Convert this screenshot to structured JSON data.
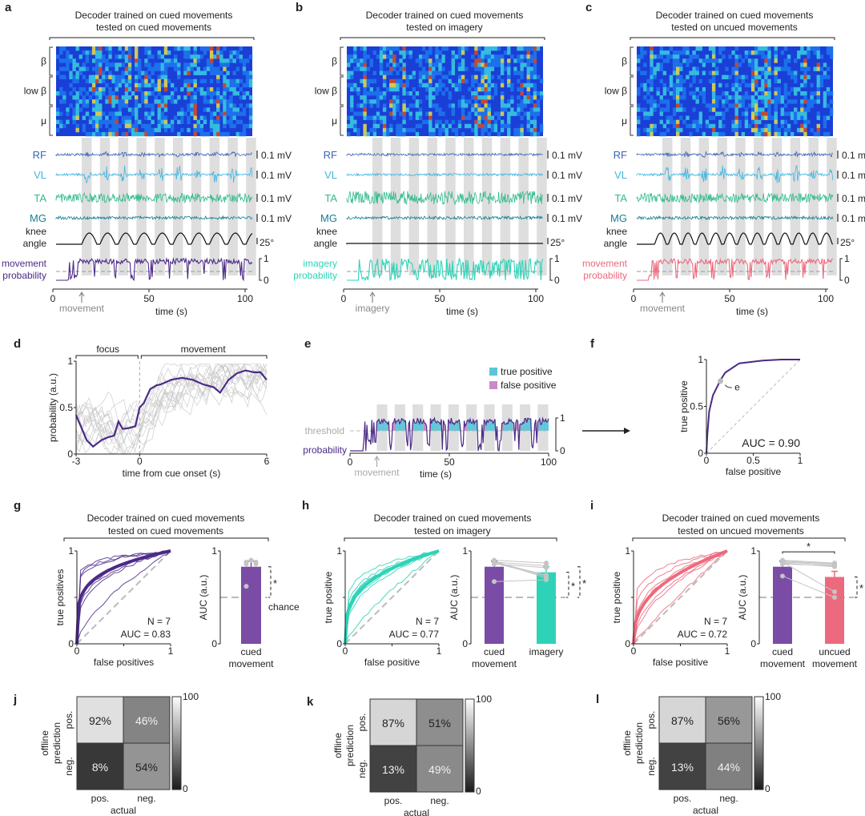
{
  "colors": {
    "purple": "#4b2a87",
    "purple_bar": "#7a4ca5",
    "teal": "#2ed3b7",
    "pink": "#ec6a7e",
    "rf": "#3b63b3",
    "vl": "#3fb6e4",
    "ta": "#2fba8c",
    "mg": "#167f93",
    "gray_band": "#dedede",
    "chance": "#bbbbbb",
    "tp": "#5cc6d8",
    "fp": "#c98ac8"
  },
  "panels": {
    "a": {
      "letter": "a",
      "title1": "Decoder trained on cued movements",
      "title2": "tested on cued movements",
      "prob_label1": "movement",
      "prob_label2": "probability",
      "prob_color": "purple",
      "event": "movement",
      "active": true
    },
    "b": {
      "letter": "b",
      "title1": "Decoder trained on cued movements",
      "title2": "tested on imagery",
      "prob_label1": "imagery",
      "prob_label2": "probability",
      "prob_color": "teal",
      "event": "imagery",
      "active": false
    },
    "c": {
      "letter": "c",
      "title1": "Decoder trained on cued movements",
      "title2": "tested on uncued movements",
      "prob_label1": "movement",
      "prob_label2": "probability",
      "prob_color": "pink",
      "event": "movement",
      "active": true
    }
  },
  "spectro_labels": [
    "β",
    "low β",
    "μ"
  ],
  "emg_channels": [
    {
      "name": "RF",
      "scale": "0.1 mV",
      "color": "rf"
    },
    {
      "name": "VL",
      "scale": "0.1 mV",
      "color": "vl"
    },
    {
      "name": "TA",
      "scale": "0.1 mV",
      "color": "ta"
    },
    {
      "name": "MG",
      "scale": "0.1 mV",
      "color": "mg"
    }
  ],
  "knee": {
    "label1": "knee",
    "label2": "angle",
    "scale": "25°"
  },
  "prob_scale": {
    "top": "1",
    "bottom": "0"
  },
  "time_axis": {
    "label": "time (s)",
    "ticks": [
      "0",
      "50",
      "100"
    ]
  },
  "panel_d": {
    "letter": "d",
    "focus_label": "focus",
    "movement_label": "movement",
    "ylabel": "probability (a.u.)",
    "xlabel": "time from cue onset (s)",
    "xticks": [
      "-3",
      "0",
      "6"
    ],
    "yticks": [
      "0",
      "0.5",
      "1"
    ]
  },
  "panel_e": {
    "letter": "e",
    "legend": [
      "true positive",
      "false positive"
    ],
    "threshold_label": "threshold",
    "prob_label": "probability",
    "event": "movement",
    "xlabel": "time (s)",
    "xticks": [
      "0",
      "50",
      "100"
    ]
  },
  "panel_f": {
    "letter": "f",
    "ylabel": "true positive",
    "xlabel": "false positive",
    "auc_text": "AUC = 0.90",
    "marker_label": "e",
    "xticks": [
      "0",
      "0.5",
      "1"
    ],
    "yticks": [
      "0",
      "0.5",
      "1"
    ]
  },
  "roc_panels": [
    {
      "letter": "g",
      "title1": "Decoder trained on cued movements",
      "title2": "tested on cued movements",
      "ylabel": "true positives",
      "xlabel": "false positives",
      "n_text": "N = 7",
      "auc_text": "AUC = 0.83",
      "color": "purple",
      "bars": [
        "cued movement"
      ],
      "chance_label": "chance"
    },
    {
      "letter": "h",
      "title1": "Decoder trained on cued movements",
      "title2": "tested on imagery",
      "ylabel": "true positive",
      "xlabel": "false positive",
      "n_text": "N = 7",
      "auc_text": "AUC = 0.77",
      "color": "teal",
      "bars": [
        "cued movement",
        "imagery"
      ]
    },
    {
      "letter": "i",
      "title1": "Decoder trained on cued movements",
      "title2": "tested on uncued movements",
      "ylabel": "true positive",
      "xlabel": "false positive",
      "n_text": "N = 7",
      "auc_text": "AUC = 0.72",
      "color": "pink",
      "bars": [
        "cued movement",
        "uncued movement"
      ]
    }
  ],
  "auc_axis": {
    "label": "AUC (a.u.)",
    "ticks": [
      "0",
      "1"
    ]
  },
  "confusion_panels": [
    {
      "letter": "j",
      "cells": [
        [
          "92%",
          "46%"
        ],
        [
          "8%",
          "54%"
        ]
      ],
      "values": [
        [
          92,
          46
        ],
        [
          8,
          54
        ]
      ]
    },
    {
      "letter": "k",
      "cells": [
        [
          "87%",
          "51%"
        ],
        [
          "13%",
          "49%"
        ]
      ],
      "values": [
        [
          87,
          51
        ],
        [
          13,
          49
        ]
      ]
    },
    {
      "letter": "l",
      "cells": [
        [
          "87%",
          "56%"
        ],
        [
          "13%",
          "44%"
        ]
      ],
      "values": [
        [
          87,
          56
        ],
        [
          13,
          44
        ]
      ]
    }
  ],
  "confusion_labels": {
    "ylabel1": "offline",
    "ylabel2": "prediction",
    "row": [
      "pos.",
      "neg."
    ],
    "col": [
      "pos.",
      "neg."
    ],
    "xlabel": "actual",
    "cbar_top": "100",
    "cbar_bottom": "0"
  },
  "chart_data": [
    {
      "type": "line",
      "panel": "d",
      "title": "",
      "xlabel": "time from cue onset (s)",
      "ylabel": "probability (a.u.)",
      "xlim": [
        -3,
        6
      ],
      "ylim": [
        0,
        1
      ],
      "series": [
        {
          "name": "mean",
          "x": [
            -3,
            -2.5,
            -2.2,
            -1.8,
            -1.5,
            -1.2,
            -1.0,
            -0.8,
            -0.5,
            -0.2,
            0,
            0.2,
            0.5,
            0.8,
            1.0,
            1.5,
            2.0,
            2.5,
            3.0,
            3.5,
            3.8,
            4.2,
            4.6,
            5.0,
            5.4,
            5.7,
            6.0
          ],
          "y": [
            0.42,
            0.15,
            0.08,
            0.15,
            0.18,
            0.2,
            0.35,
            0.27,
            0.28,
            0.3,
            0.5,
            0.55,
            0.7,
            0.74,
            0.75,
            0.8,
            0.82,
            0.8,
            0.75,
            0.72,
            0.66,
            0.8,
            0.87,
            0.9,
            0.88,
            0.88,
            0.8
          ]
        }
      ]
    },
    {
      "type": "line",
      "panel": "f",
      "xlabel": "false positive",
      "ylabel": "true positive",
      "xlim": [
        0,
        1
      ],
      "ylim": [
        0,
        1
      ],
      "auc": 0.9,
      "series": [
        {
          "name": "ROC",
          "x": [
            0,
            0.01,
            0.03,
            0.07,
            0.12,
            0.15,
            0.2,
            0.35,
            0.6,
            0.8,
            1.0
          ],
          "y": [
            0,
            0.2,
            0.45,
            0.62,
            0.72,
            0.78,
            0.86,
            0.96,
            0.99,
            1.0,
            1.0
          ]
        }
      ],
      "marker": {
        "x": 0.15,
        "y": 0.77
      }
    },
    {
      "type": "bar",
      "panel": "g",
      "categories": [
        "cued movement"
      ],
      "values": [
        0.83
      ],
      "ylim": [
        0,
        1
      ],
      "chance": 0.5,
      "points": [
        [
          0.88,
          0.9,
          0.88,
          0.86,
          0.9,
          0.86,
          0.62
        ]
      ]
    },
    {
      "type": "bar",
      "panel": "h",
      "categories": [
        "cued movement",
        "imagery"
      ],
      "values": [
        0.83,
        0.77
      ],
      "ylim": [
        0,
        1
      ],
      "chance": 0.5,
      "points": [
        [
          0.9,
          0.88,
          0.86,
          0.87,
          0.89,
          0.88,
          0.67
        ],
        [
          0.87,
          0.84,
          0.82,
          0.73,
          0.71,
          0.74,
          0.69
        ]
      ]
    },
    {
      "type": "bar",
      "panel": "i",
      "categories": [
        "cued movement",
        "uncued movement"
      ],
      "values": [
        0.83,
        0.72
      ],
      "ylim": [
        0,
        1
      ],
      "chance": 0.5,
      "points": [
        [
          0.9,
          0.88,
          0.86,
          0.87,
          0.89,
          0.88,
          0.73
        ],
        [
          0.87,
          0.85,
          0.84,
          0.83,
          0.86,
          0.56,
          0.5
        ]
      ]
    },
    {
      "type": "heatmap",
      "panel": "j",
      "rows": [
        "pos.",
        "neg."
      ],
      "cols": [
        "pos.",
        "neg."
      ],
      "values": [
        [
          92,
          46
        ],
        [
          8,
          54
        ]
      ],
      "range": [
        0,
        100
      ]
    },
    {
      "type": "heatmap",
      "panel": "k",
      "rows": [
        "pos.",
        "neg."
      ],
      "cols": [
        "pos.",
        "neg."
      ],
      "values": [
        [
          87,
          51
        ],
        [
          13,
          49
        ]
      ],
      "range": [
        0,
        100
      ]
    },
    {
      "type": "heatmap",
      "panel": "l",
      "rows": [
        "pos.",
        "neg."
      ],
      "cols": [
        "pos.",
        "neg."
      ],
      "values": [
        [
          87,
          56
        ],
        [
          13,
          44
        ]
      ],
      "range": [
        0,
        100
      ]
    }
  ]
}
